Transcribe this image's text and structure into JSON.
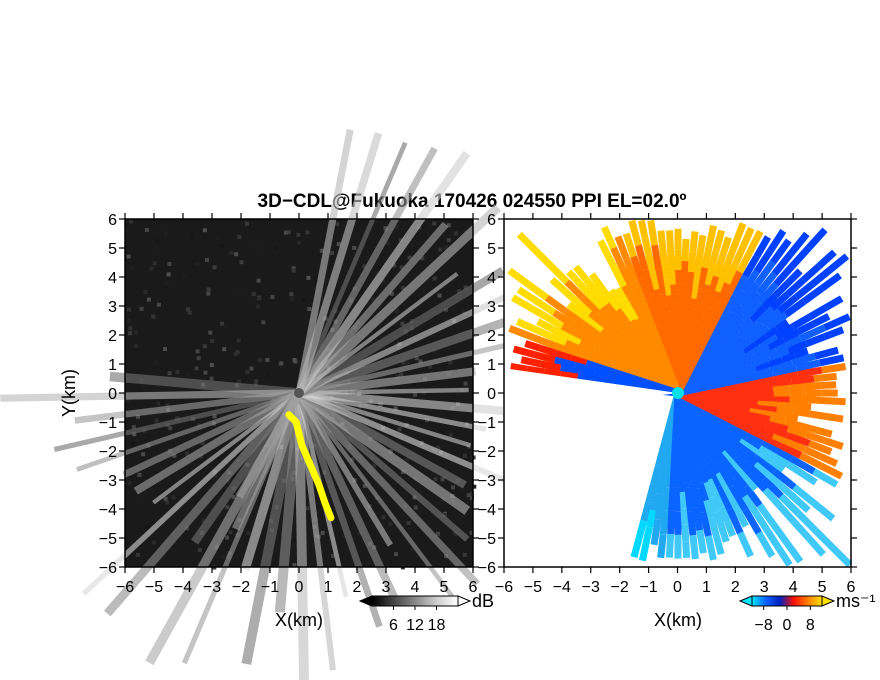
{
  "title": "3D−CDL@Fukuoka 170426 024550 PPI EL=02.0º",
  "chart_data": [
    {
      "type": "heatmap",
      "panel": "left",
      "quantity": "signal-to-noise ratio",
      "xlabel": "X(km)",
      "ylabel": "Y(km)",
      "xlim": [
        -6,
        6
      ],
      "ylim": [
        -6,
        6
      ],
      "xticks": [
        "−6",
        "−5",
        "−4",
        "−3",
        "−2",
        "−1",
        "0",
        "1",
        "2",
        "3",
        "4",
        "5",
        "6"
      ],
      "yticks": [
        "−6",
        "−5",
        "−4",
        "−3",
        "−2",
        "−1",
        "0",
        "1",
        "2",
        "3",
        "4",
        "5",
        "6"
      ],
      "colorscale": "grayscale",
      "colorbar": {
        "unit": "dB",
        "ticks": [
          "6",
          "12",
          "18"
        ],
        "range": [
          0,
          24
        ]
      },
      "highlight": {
        "color": "#ffff00",
        "points": [
          [
            -0.35,
            -0.75
          ],
          [
            -0.1,
            -1.0
          ],
          [
            0.1,
            -1.8
          ],
          [
            0.4,
            -2.5
          ],
          [
            0.7,
            -3.2
          ],
          [
            0.9,
            -3.8
          ],
          [
            1.1,
            -4.3
          ]
        ]
      },
      "radar_origin": [
        0,
        0
      ]
    },
    {
      "type": "heatmap",
      "panel": "right",
      "quantity": "radial velocity",
      "xlabel": "X(km)",
      "xlim": [
        -6,
        6
      ],
      "ylim": [
        -6,
        6
      ],
      "xticks": [
        "−6",
        "−5",
        "−4",
        "−3",
        "−2",
        "−1",
        "0",
        "1",
        "2",
        "3",
        "4",
        "5",
        "6"
      ],
      "yticks": [
        "−6",
        "−5",
        "−4",
        "−3",
        "−2",
        "−1",
        "0",
        "1",
        "2",
        "3",
        "4",
        "5",
        "6"
      ],
      "colorscale": "cyan-blue-red-orange-yellow",
      "colorbar": {
        "unit": "ms⁻¹",
        "ticks": [
          "−8",
          "0",
          "8"
        ],
        "range": [
          -12,
          12
        ]
      },
      "radar_origin": [
        0,
        0
      ]
    }
  ],
  "colors": {
    "frame": "#000000",
    "highlight": "#ffff00",
    "vel_neg_far": "#00e0ff",
    "vel_neg": "#0040ff",
    "vel_pos": "#ff2000",
    "vel_pos_far": "#ffe000"
  }
}
